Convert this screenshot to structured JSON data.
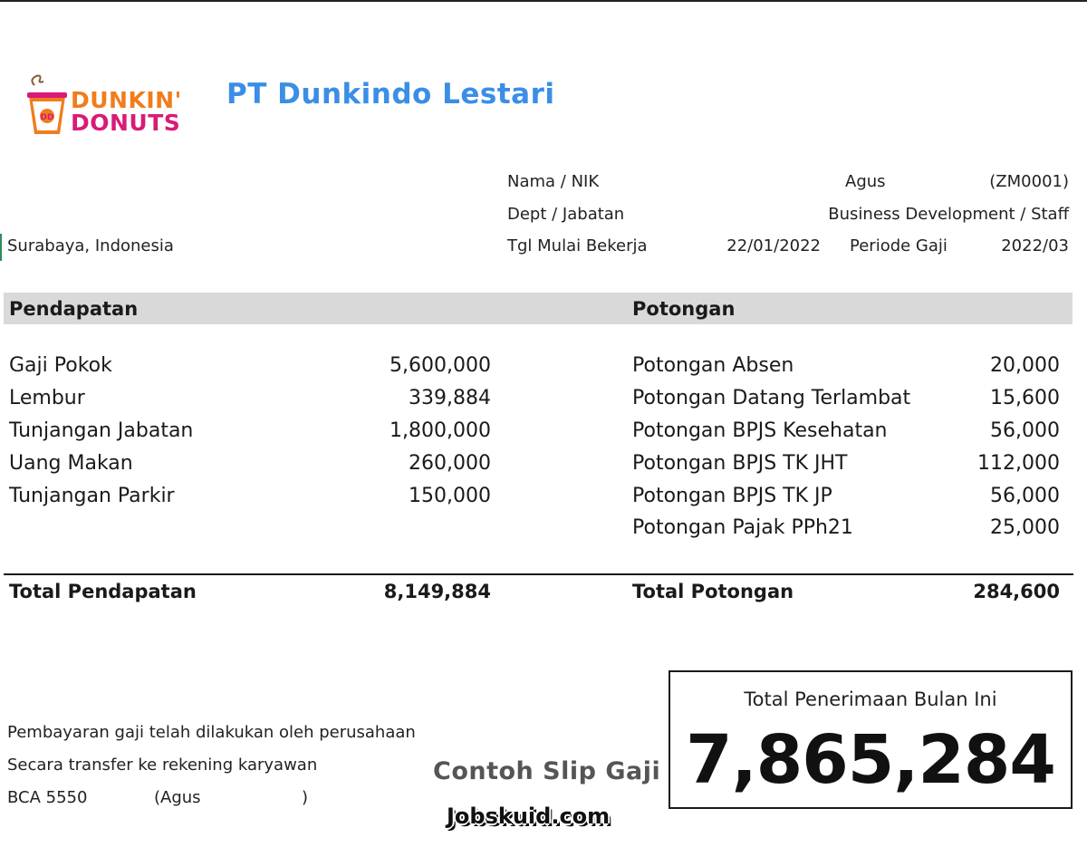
{
  "brand": {
    "line1": "DUNKIN'",
    "line2": "DONUTS",
    "orange": "#f07d1d",
    "pink": "#d91a78",
    "icon": "coffee-cup-icon"
  },
  "company": "PT Dunkindo Lestari",
  "address": "Surabaya, Indonesia",
  "employee": {
    "nama_label": "Nama / NIK",
    "nama_value": "Agus",
    "nik_value": "(ZM0001)",
    "dept_label": "Dept / Jabatan",
    "dept_value": "Business Development / Staff",
    "tgl_label": "Tgl Mulai Bekerja",
    "tgl_value": "22/01/2022",
    "periode_label": "Periode Gaji",
    "periode_value": "2022/03"
  },
  "pendapatan": {
    "header": "Pendapatan",
    "items": [
      {
        "label": "Gaji Pokok",
        "value": "5,600,000"
      },
      {
        "label": "Lembur",
        "value": "339,884"
      },
      {
        "label": "Tunjangan Jabatan",
        "value": "1,800,000"
      },
      {
        "label": "Uang Makan",
        "value": "260,000"
      },
      {
        "label": "Tunjangan Parkir",
        "value": "150,000"
      }
    ],
    "total_label": "Total Pendapatan",
    "total_value": "8,149,884"
  },
  "potongan": {
    "header": "Potongan",
    "items": [
      {
        "label": "Potongan Absen",
        "value": "20,000"
      },
      {
        "label": "Potongan Datang Terlambat",
        "value": "15,600"
      },
      {
        "label": "Potongan BPJS Kesehatan",
        "value": "56,000"
      },
      {
        "label": "Potongan BPJS TK JHT",
        "value": "112,000"
      },
      {
        "label": "Potongan BPJS TK JP",
        "value": "56,000"
      },
      {
        "label": "Potongan Pajak PPh21",
        "value": "25,000"
      }
    ],
    "total_label": "Total Potongan",
    "total_value": "284,600"
  },
  "notes": {
    "line1": "Pembayaran gaji telah dilakukan oleh perusahaan",
    "line2": "Secara transfer ke rekening karyawan",
    "bank": "BCA 5550",
    "account_name": "(Agus",
    "close_paren": ")"
  },
  "watermark": {
    "title": "Contoh Slip Gaji",
    "site": "Jobskuid.com"
  },
  "net": {
    "label": "Total Penerimaan Bulan Ini",
    "value": "7,865,284"
  },
  "colors": {
    "company": "#3b8ee6",
    "header_bar": "#d9d9d9"
  }
}
